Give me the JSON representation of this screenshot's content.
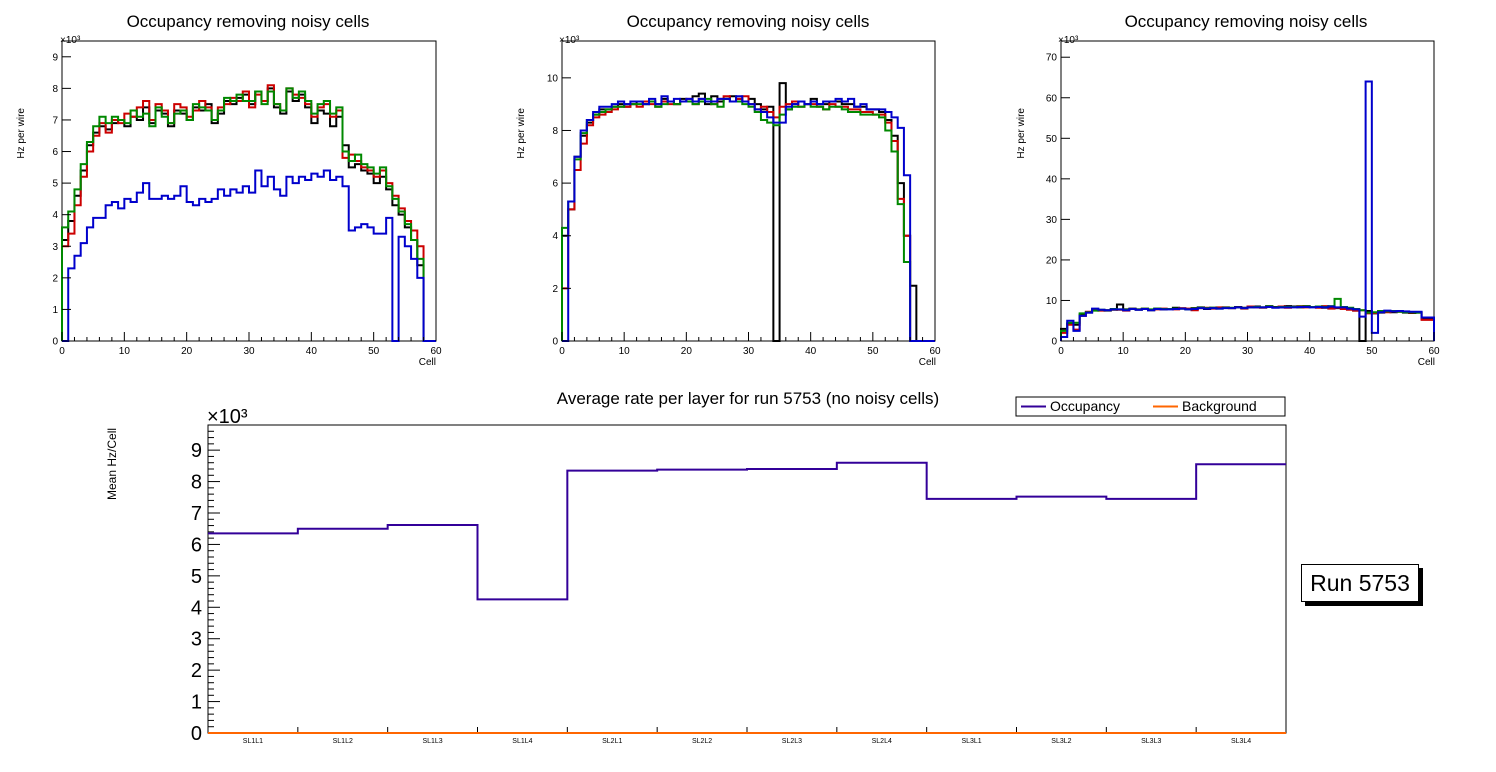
{
  "chart_data": [
    {
      "type": "line",
      "title": "Occupancy removing noisy cells",
      "xlabel": "Cell",
      "ylabel": "Hz per wire",
      "exponent": "×10³",
      "xlim": [
        0,
        60
      ],
      "ylim": [
        0,
        9.5
      ],
      "xticks": [
        0,
        10,
        20,
        30,
        40,
        50,
        60
      ],
      "yticks": [
        0,
        1,
        2,
        3,
        4,
        5,
        6,
        7,
        8,
        9
      ],
      "series": [
        {
          "name": "black",
          "color": "#000000",
          "values": [
            3.2,
            3.8,
            4.6,
            5.4,
            6.2,
            6.6,
            6.8,
            6.7,
            6.9,
            7.0,
            6.8,
            7.1,
            7.0,
            7.4,
            6.9,
            7.3,
            7.2,
            6.8,
            7.3,
            7.2,
            7.0,
            7.4,
            7.3,
            7.5,
            6.9,
            7.2,
            7.6,
            7.5,
            7.7,
            7.8,
            7.5,
            7.9,
            7.6,
            8.0,
            7.4,
            7.2,
            7.9,
            7.6,
            7.8,
            7.4,
            6.9,
            7.3,
            7.2,
            6.8,
            7.1,
            6.2,
            5.5,
            5.6,
            5.4,
            5.3,
            5.0,
            5.2,
            4.8,
            4.3,
            4.0,
            3.6,
            3.2,
            2.4
          ]
        },
        {
          "name": "red",
          "color": "#cc0000",
          "values": [
            3.0,
            3.4,
            4.3,
            5.2,
            6.0,
            6.5,
            6.9,
            6.6,
            7.0,
            6.9,
            7.2,
            7.1,
            7.4,
            7.6,
            7.0,
            7.5,
            7.3,
            6.9,
            7.5,
            7.4,
            7.1,
            7.3,
            7.6,
            7.4,
            7.0,
            7.4,
            7.5,
            7.7,
            7.6,
            7.9,
            7.4,
            7.8,
            7.6,
            8.1,
            7.5,
            7.3,
            8.0,
            7.8,
            7.7,
            7.5,
            7.1,
            7.4,
            7.5,
            7.1,
            7.3,
            5.8,
            5.9,
            5.7,
            5.5,
            5.4,
            5.2,
            5.4,
            5.0,
            4.6,
            4.2,
            3.8,
            3.5,
            3.0
          ]
        },
        {
          "name": "green",
          "color": "#008800",
          "values": [
            3.6,
            4.1,
            4.8,
            5.6,
            6.3,
            6.8,
            7.1,
            6.9,
            7.1,
            7.0,
            6.9,
            7.3,
            7.1,
            7.2,
            6.8,
            7.4,
            7.1,
            6.9,
            7.2,
            7.3,
            7.0,
            7.5,
            7.4,
            7.3,
            7.0,
            7.3,
            7.7,
            7.6,
            7.8,
            7.6,
            7.6,
            7.9,
            7.5,
            7.9,
            7.5,
            7.3,
            8.0,
            7.7,
            7.9,
            7.6,
            7.2,
            7.5,
            7.6,
            7.2,
            7.4,
            6.0,
            5.7,
            5.9,
            5.6,
            5.5,
            5.3,
            5.5,
            4.9,
            4.5,
            4.1,
            3.7,
            3.2,
            2.6
          ]
        },
        {
          "name": "blue",
          "color": "#0000cc",
          "values": [
            0.0,
            2.3,
            2.7,
            3.1,
            3.6,
            3.9,
            3.9,
            4.3,
            4.4,
            4.2,
            4.5,
            4.4,
            4.7,
            5.0,
            4.5,
            4.5,
            4.6,
            4.5,
            4.6,
            4.9,
            4.4,
            4.3,
            4.5,
            4.4,
            4.5,
            4.8,
            4.6,
            4.8,
            4.7,
            4.9,
            4.7,
            5.4,
            4.9,
            5.2,
            4.8,
            4.6,
            5.2,
            5.0,
            5.2,
            5.1,
            5.3,
            5.2,
            5.4,
            5.1,
            5.2,
            4.9,
            3.5,
            3.6,
            3.7,
            3.6,
            3.4,
            3.4,
            3.9,
            0.0,
            3.3,
            3.0,
            2.6,
            2.0,
            0.0,
            0.0
          ]
        }
      ]
    },
    {
      "type": "line",
      "title": "Occupancy removing noisy cells",
      "xlabel": "Cell",
      "ylabel": "Hz per wire",
      "exponent": "×10³",
      "xlim": [
        0,
        60
      ],
      "ylim": [
        0,
        11.4
      ],
      "xticks": [
        0,
        10,
        20,
        30,
        40,
        50,
        60
      ],
      "yticks": [
        0,
        2,
        4,
        6,
        8,
        10
      ],
      "series": [
        {
          "name": "black",
          "color": "#000000",
          "values": [
            4.0,
            5.0,
            7.0,
            7.8,
            8.3,
            8.6,
            8.8,
            8.8,
            8.9,
            9.0,
            8.9,
            9.0,
            9.1,
            9.0,
            9.1,
            9.0,
            9.2,
            9.1,
            9.0,
            9.2,
            9.1,
            9.3,
            9.4,
            9.0,
            9.3,
            9.1,
            9.2,
            9.3,
            9.2,
            9.1,
            9.2,
            9.0,
            8.8,
            8.9,
            0.0,
            9.8,
            8.8,
            9.0,
            9.1,
            9.0,
            9.2,
            9.0,
            9.0,
            9.1,
            9.1,
            9.0,
            9.0,
            8.9,
            8.9,
            8.8,
            8.8,
            8.7,
            8.4,
            7.8,
            6.0,
            4.0,
            2.1,
            0.0,
            0.0,
            0.0
          ]
        },
        {
          "name": "red",
          "color": "#cc0000",
          "values": [
            2.0,
            5.0,
            6.5,
            7.5,
            8.2,
            8.5,
            8.6,
            8.7,
            8.8,
            8.9,
            8.9,
            9.0,
            8.9,
            9.1,
            9.0,
            8.9,
            9.1,
            9.0,
            9.0,
            9.1,
            9.2,
            9.0,
            9.2,
            9.1,
            9.0,
            9.2,
            9.3,
            9.1,
            9.2,
            9.3,
            9.0,
            8.8,
            8.9,
            8.7,
            8.5,
            8.9,
            9.0,
            9.1,
            8.9,
            9.0,
            9.0,
            8.9,
            8.8,
            9.0,
            8.9,
            8.9,
            8.8,
            8.8,
            8.7,
            8.7,
            8.6,
            8.6,
            8.3,
            7.6,
            5.4,
            4.0,
            0.0,
            0.0,
            0.0,
            0.0
          ]
        },
        {
          "name": "green",
          "color": "#008800",
          "values": [
            4.3,
            5.3,
            6.9,
            7.9,
            8.4,
            8.6,
            8.7,
            8.8,
            8.9,
            8.9,
            9.0,
            9.0,
            9.0,
            9.0,
            9.1,
            8.9,
            9.0,
            9.1,
            9.0,
            9.1,
            9.1,
            9.0,
            9.1,
            9.2,
            9.0,
            8.9,
            9.2,
            9.1,
            9.1,
            9.0,
            8.9,
            8.7,
            8.4,
            8.3,
            8.2,
            8.6,
            8.8,
            8.9,
            8.9,
            9.0,
            8.9,
            8.9,
            8.8,
            8.9,
            8.9,
            8.8,
            8.7,
            8.7,
            8.6,
            8.6,
            8.6,
            8.5,
            8.0,
            7.2,
            5.2,
            3.0,
            0.0,
            0.0,
            0.0,
            0.0
          ]
        },
        {
          "name": "blue",
          "color": "#0000cc",
          "values": [
            0.0,
            5.3,
            7.0,
            8.0,
            8.4,
            8.7,
            8.9,
            8.9,
            9.0,
            9.1,
            9.0,
            9.1,
            9.1,
            9.0,
            9.2,
            9.0,
            9.3,
            9.1,
            9.2,
            9.1,
            9.2,
            9.1,
            9.2,
            9.1,
            9.1,
            9.2,
            9.2,
            9.1,
            9.3,
            9.1,
            9.0,
            8.8,
            8.7,
            8.5,
            8.3,
            8.3,
            8.9,
            9.0,
            9.1,
            9.0,
            9.1,
            9.0,
            9.1,
            9.1,
            9.2,
            9.1,
            9.2,
            8.9,
            9.0,
            8.8,
            8.8,
            8.8,
            8.7,
            8.5,
            8.1,
            6.3,
            0.0,
            0.0,
            0.0,
            0.0
          ]
        }
      ]
    },
    {
      "type": "line",
      "title": "Occupancy removing noisy cells",
      "xlabel": "Cell",
      "ylabel": "Hz per wire",
      "exponent": "×10³",
      "xlim": [
        0,
        60
      ],
      "ylim": [
        0,
        74
      ],
      "xticks": [
        0,
        10,
        20,
        30,
        40,
        50,
        60
      ],
      "yticks": [
        0,
        10,
        20,
        30,
        40,
        50,
        60,
        70
      ],
      "series": [
        {
          "name": "black",
          "color": "#000000",
          "values": [
            3.0,
            4.2,
            4.0,
            6.5,
            7.0,
            7.8,
            7.6,
            7.5,
            7.7,
            9.0,
            7.8,
            8.0,
            7.7,
            7.9,
            7.6,
            8.0,
            7.8,
            7.9,
            8.2,
            8.0,
            7.9,
            8.1,
            8.3,
            7.9,
            8.2,
            8.1,
            8.3,
            8.1,
            8.4,
            8.2,
            8.4,
            8.5,
            8.3,
            8.6,
            8.4,
            8.3,
            8.6,
            8.5,
            8.3,
            8.6,
            8.4,
            8.5,
            8.2,
            8.4,
            8.1,
            8.2,
            7.8,
            7.5,
            0.0,
            7.4,
            6.8,
            7.0,
            7.2,
            7.1,
            7.3,
            7.0,
            6.9,
            7.0,
            5.5,
            5.5
          ]
        },
        {
          "name": "red",
          "color": "#cc0000",
          "values": [
            2.0,
            4.0,
            2.8,
            6.2,
            7.2,
            7.7,
            7.5,
            7.6,
            7.8,
            7.7,
            7.5,
            7.9,
            7.8,
            8.0,
            7.7,
            7.8,
            8.0,
            7.9,
            7.8,
            8.1,
            8.0,
            7.6,
            8.1,
            8.2,
            8.0,
            8.3,
            8.2,
            8.1,
            8.3,
            8.0,
            8.5,
            8.3,
            8.2,
            8.4,
            8.3,
            8.5,
            8.2,
            8.4,
            8.6,
            8.3,
            8.4,
            8.2,
            8.6,
            8.0,
            8.2,
            7.9,
            7.7,
            7.5,
            7.6,
            6.8,
            6.9,
            7.3,
            7.1,
            7.3,
            7.2,
            7.2,
            7.0,
            7.1,
            5.2,
            5.2
          ]
        },
        {
          "name": "green",
          "color": "#008800",
          "values": [
            2.5,
            4.5,
            4.5,
            6.8,
            7.1,
            7.5,
            7.7,
            7.6,
            7.9,
            7.8,
            7.7,
            7.9,
            7.8,
            8.0,
            7.8,
            8.0,
            7.9,
            7.9,
            8.0,
            8.0,
            7.8,
            8.0,
            8.2,
            8.1,
            8.2,
            8.0,
            8.2,
            8.2,
            8.3,
            8.1,
            8.3,
            8.4,
            8.3,
            8.5,
            8.3,
            8.4,
            8.4,
            8.4,
            8.5,
            8.5,
            8.4,
            8.5,
            8.4,
            8.6,
            10.4,
            8.4,
            8.2,
            7.9,
            7.6,
            7.0,
            7.1,
            7.4,
            7.3,
            7.4,
            7.2,
            7.1,
            7.1,
            7.0,
            5.8,
            5.8
          ]
        },
        {
          "name": "blue",
          "color": "#0000cc",
          "values": [
            1.0,
            5.0,
            2.5,
            6.2,
            7.0,
            8.0,
            7.7,
            7.6,
            7.8,
            7.8,
            7.6,
            7.9,
            7.7,
            7.9,
            7.6,
            7.9,
            7.8,
            7.8,
            7.9,
            8.0,
            7.8,
            7.9,
            8.1,
            8.0,
            8.1,
            8.0,
            8.1,
            8.1,
            8.3,
            8.1,
            8.3,
            8.3,
            8.3,
            8.4,
            8.2,
            8.3,
            8.3,
            8.3,
            8.4,
            8.4,
            8.3,
            8.4,
            8.3,
            8.5,
            8.3,
            8.3,
            8.0,
            7.8,
            6.0,
            64.0,
            2.0,
            7.1,
            7.5,
            7.3,
            7.4,
            7.3,
            7.2,
            7.2,
            5.8,
            5.8
          ]
        }
      ]
    },
    {
      "type": "line",
      "title": "Average rate per layer for run 5753 (no noisy cells)",
      "xlabel": "",
      "ylabel": "Mean Hz/Cell",
      "exponent": "×10³",
      "ylim": [
        0,
        9.8
      ],
      "yticks": [
        0,
        1,
        2,
        3,
        4,
        5,
        6,
        7,
        8,
        9
      ],
      "categories": [
        "SL1L1",
        "SL1L2",
        "SL1L3",
        "SL1L4",
        "SL2L1",
        "SL2L2",
        "SL2L3",
        "SL2L4",
        "SL3L1",
        "SL3L2",
        "SL3L3",
        "SL3L4"
      ],
      "legend": "top-right",
      "series": [
        {
          "name": "Occupancy",
          "color": "#330099",
          "values": [
            6.35,
            6.5,
            6.62,
            4.25,
            8.35,
            8.38,
            8.4,
            8.6,
            7.45,
            7.52,
            7.45,
            8.55
          ]
        },
        {
          "name": "Background",
          "color": "#ff6600",
          "values": [
            0,
            0,
            0,
            0,
            0,
            0,
            0,
            0,
            0,
            0,
            0,
            0
          ]
        }
      ]
    }
  ],
  "run_label": "Run 5753"
}
